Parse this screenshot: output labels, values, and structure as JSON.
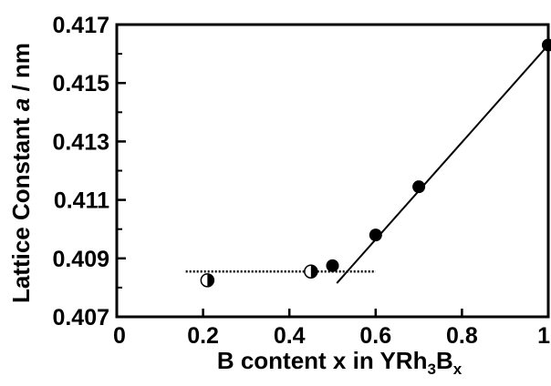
{
  "chart_data": {
    "type": "scatter",
    "xlabel": {
      "prefix": "B content x in YRh",
      "sub1": "3",
      "mid": "B",
      "sub2": "x"
    },
    "ylabel": {
      "main": "Lattice Constant ",
      "italic": "a",
      "unit": " / nm"
    },
    "xlim": [
      0,
      1
    ],
    "ylim": [
      0.407,
      0.417
    ],
    "x_ticks": [
      {
        "value": 0,
        "label": "0"
      },
      {
        "value": 0.2,
        "label": "0.2"
      },
      {
        "value": 0.4,
        "label": "0.4"
      },
      {
        "value": 0.6,
        "label": "0.6"
      },
      {
        "value": 0.8,
        "label": "0.8"
      },
      {
        "value": 1,
        "label": "1"
      }
    ],
    "y_ticks": [
      {
        "value": 0.407,
        "label": "0.407"
      },
      {
        "value": 0.409,
        "label": "0.409"
      },
      {
        "value": 0.411,
        "label": "0.411"
      },
      {
        "value": 0.413,
        "label": "0.413"
      },
      {
        "value": 0.415,
        "label": "0.415"
      },
      {
        "value": 0.417,
        "label": "0.417"
      }
    ],
    "y_minor_ticks": [
      0.408,
      0.41,
      0.412,
      0.414,
      0.416
    ],
    "series": [
      {
        "marker": "half-filled",
        "points": [
          {
            "x": 0.21,
            "y": 0.40825
          },
          {
            "x": 0.45,
            "y": 0.40855
          }
        ]
      },
      {
        "marker": "filled",
        "points": [
          {
            "x": 0.5,
            "y": 0.40875
          },
          {
            "x": 0.6,
            "y": 0.4098
          },
          {
            "x": 0.7,
            "y": 0.41145
          },
          {
            "x": 1.0,
            "y": 0.4163
          }
        ]
      }
    ],
    "lines": [
      {
        "style": "dotted",
        "x": [
          0.16,
          0.6
        ],
        "y": [
          0.40855,
          0.40855
        ]
      },
      {
        "style": "solid",
        "x": [
          0.51,
          1.0
        ],
        "y": [
          0.40815,
          0.4163
        ]
      }
    ],
    "colors": {
      "ink": "#000000",
      "background": "#ffffff"
    },
    "grid": false
  }
}
